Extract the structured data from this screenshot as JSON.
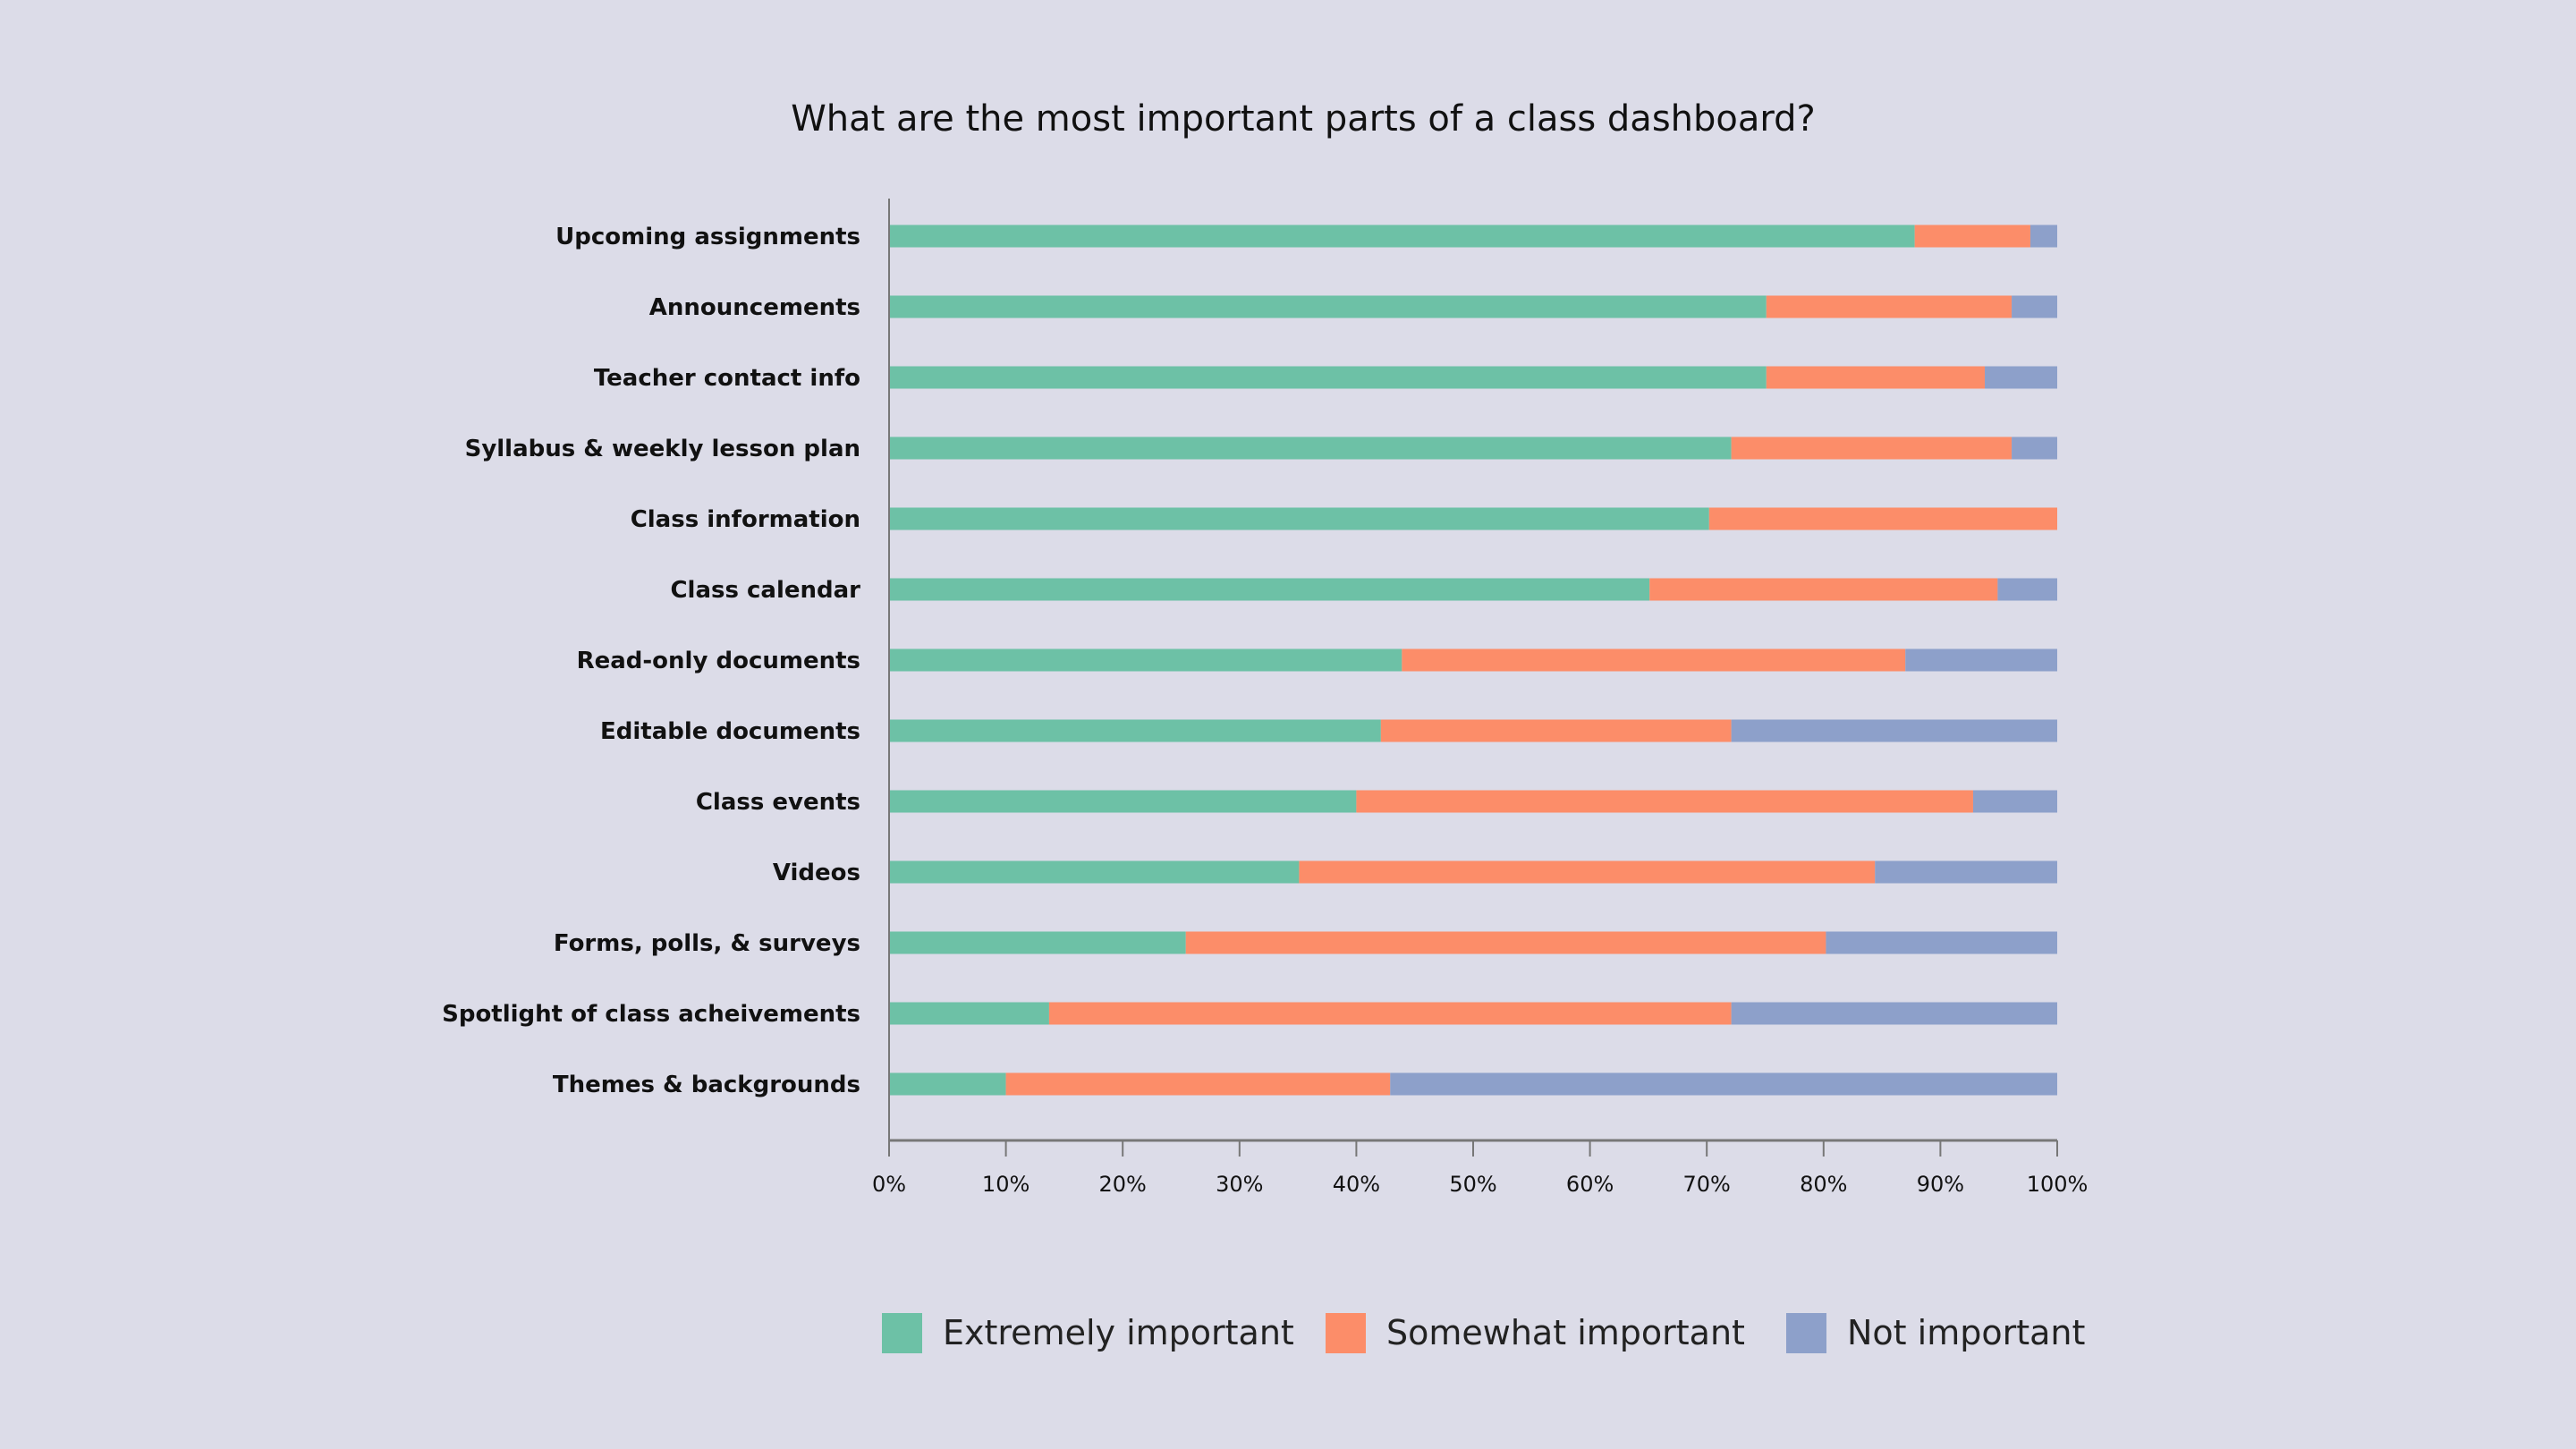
{
  "chart_data": {
    "type": "bar",
    "orientation": "horizontal",
    "stacked": true,
    "title": "What are the most important parts of a class dashboard?",
    "xlabel": "",
    "ylabel": "",
    "xlim": [
      0,
      100
    ],
    "x_ticks": [
      "0%",
      "10%",
      "20%",
      "30%",
      "40%",
      "50%",
      "60%",
      "70%",
      "80%",
      "90%",
      "100%"
    ],
    "grid": false,
    "legend_position": "bottom",
    "categories": [
      "Upcoming assignments",
      "Announcements",
      "Teacher contact info",
      "Syllabus & weekly lesson plan",
      "Class information",
      "Class calendar",
      "Read-only documents",
      "Editable documents",
      "Class events",
      "Videos",
      "Forms, polls, & surveys",
      "Spotlight of class acheivements",
      "Themes & backgrounds"
    ],
    "series": [
      {
        "name": "Extremely important",
        "color": "#6dc1a6",
        "values": [
          87.8,
          75.1,
          75.1,
          72.1,
          70.2,
          65.1,
          43.9,
          42.1,
          40.0,
          35.1,
          25.4,
          13.7,
          10.0
        ]
      },
      {
        "name": "Somewhat important",
        "color": "#fc8d69",
        "values": [
          9.9,
          21.0,
          18.7,
          24.0,
          29.8,
          29.8,
          43.1,
          30.0,
          52.8,
          49.3,
          54.8,
          58.4,
          32.9
        ]
      },
      {
        "name": "Not important",
        "color": "#8da0ca",
        "values": [
          2.3,
          3.9,
          6.2,
          3.9,
          0.0,
          5.1,
          13.0,
          27.9,
          7.2,
          15.6,
          19.8,
          27.9,
          57.1
        ]
      }
    ]
  }
}
